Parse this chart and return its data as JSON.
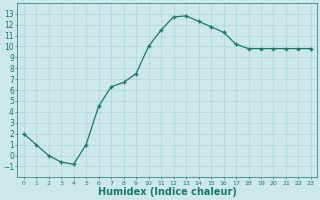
{
  "x": [
    0,
    1,
    2,
    3,
    4,
    5,
    6,
    7,
    8,
    9,
    10,
    11,
    12,
    13,
    14,
    15,
    16,
    17,
    18,
    19,
    20,
    21,
    22,
    23
  ],
  "y": [
    2,
    1,
    0,
    -0.6,
    -0.8,
    1,
    4.5,
    6.3,
    6.7,
    7.5,
    10.0,
    11.5,
    12.7,
    12.8,
    12.3,
    11.8,
    11.3,
    10.2,
    9.8,
    9.8,
    9.8,
    9.8,
    9.8,
    9.8
  ],
  "line_color": "#1a7a6a",
  "marker": "+",
  "marker_size": 3,
  "marker_linewidth": 1.0,
  "bg_color": "#cce8e8",
  "grid_color": "#b0d4d4",
  "xlabel": "Humidex (Indice chaleur)",
  "xlabel_fontsize": 7,
  "xlabel_color": "#1a7a6a",
  "tick_color": "#1a7a6a",
  "ylim": [
    -2,
    14
  ],
  "xlim": [
    -0.5,
    23.5
  ],
  "yticks": [
    -1,
    0,
    1,
    2,
    3,
    4,
    5,
    6,
    7,
    8,
    9,
    10,
    11,
    12,
    13
  ],
  "xticks": [
    0,
    1,
    2,
    3,
    4,
    5,
    6,
    7,
    8,
    9,
    10,
    11,
    12,
    13,
    14,
    15,
    16,
    17,
    18,
    19,
    20,
    21,
    22,
    23
  ]
}
